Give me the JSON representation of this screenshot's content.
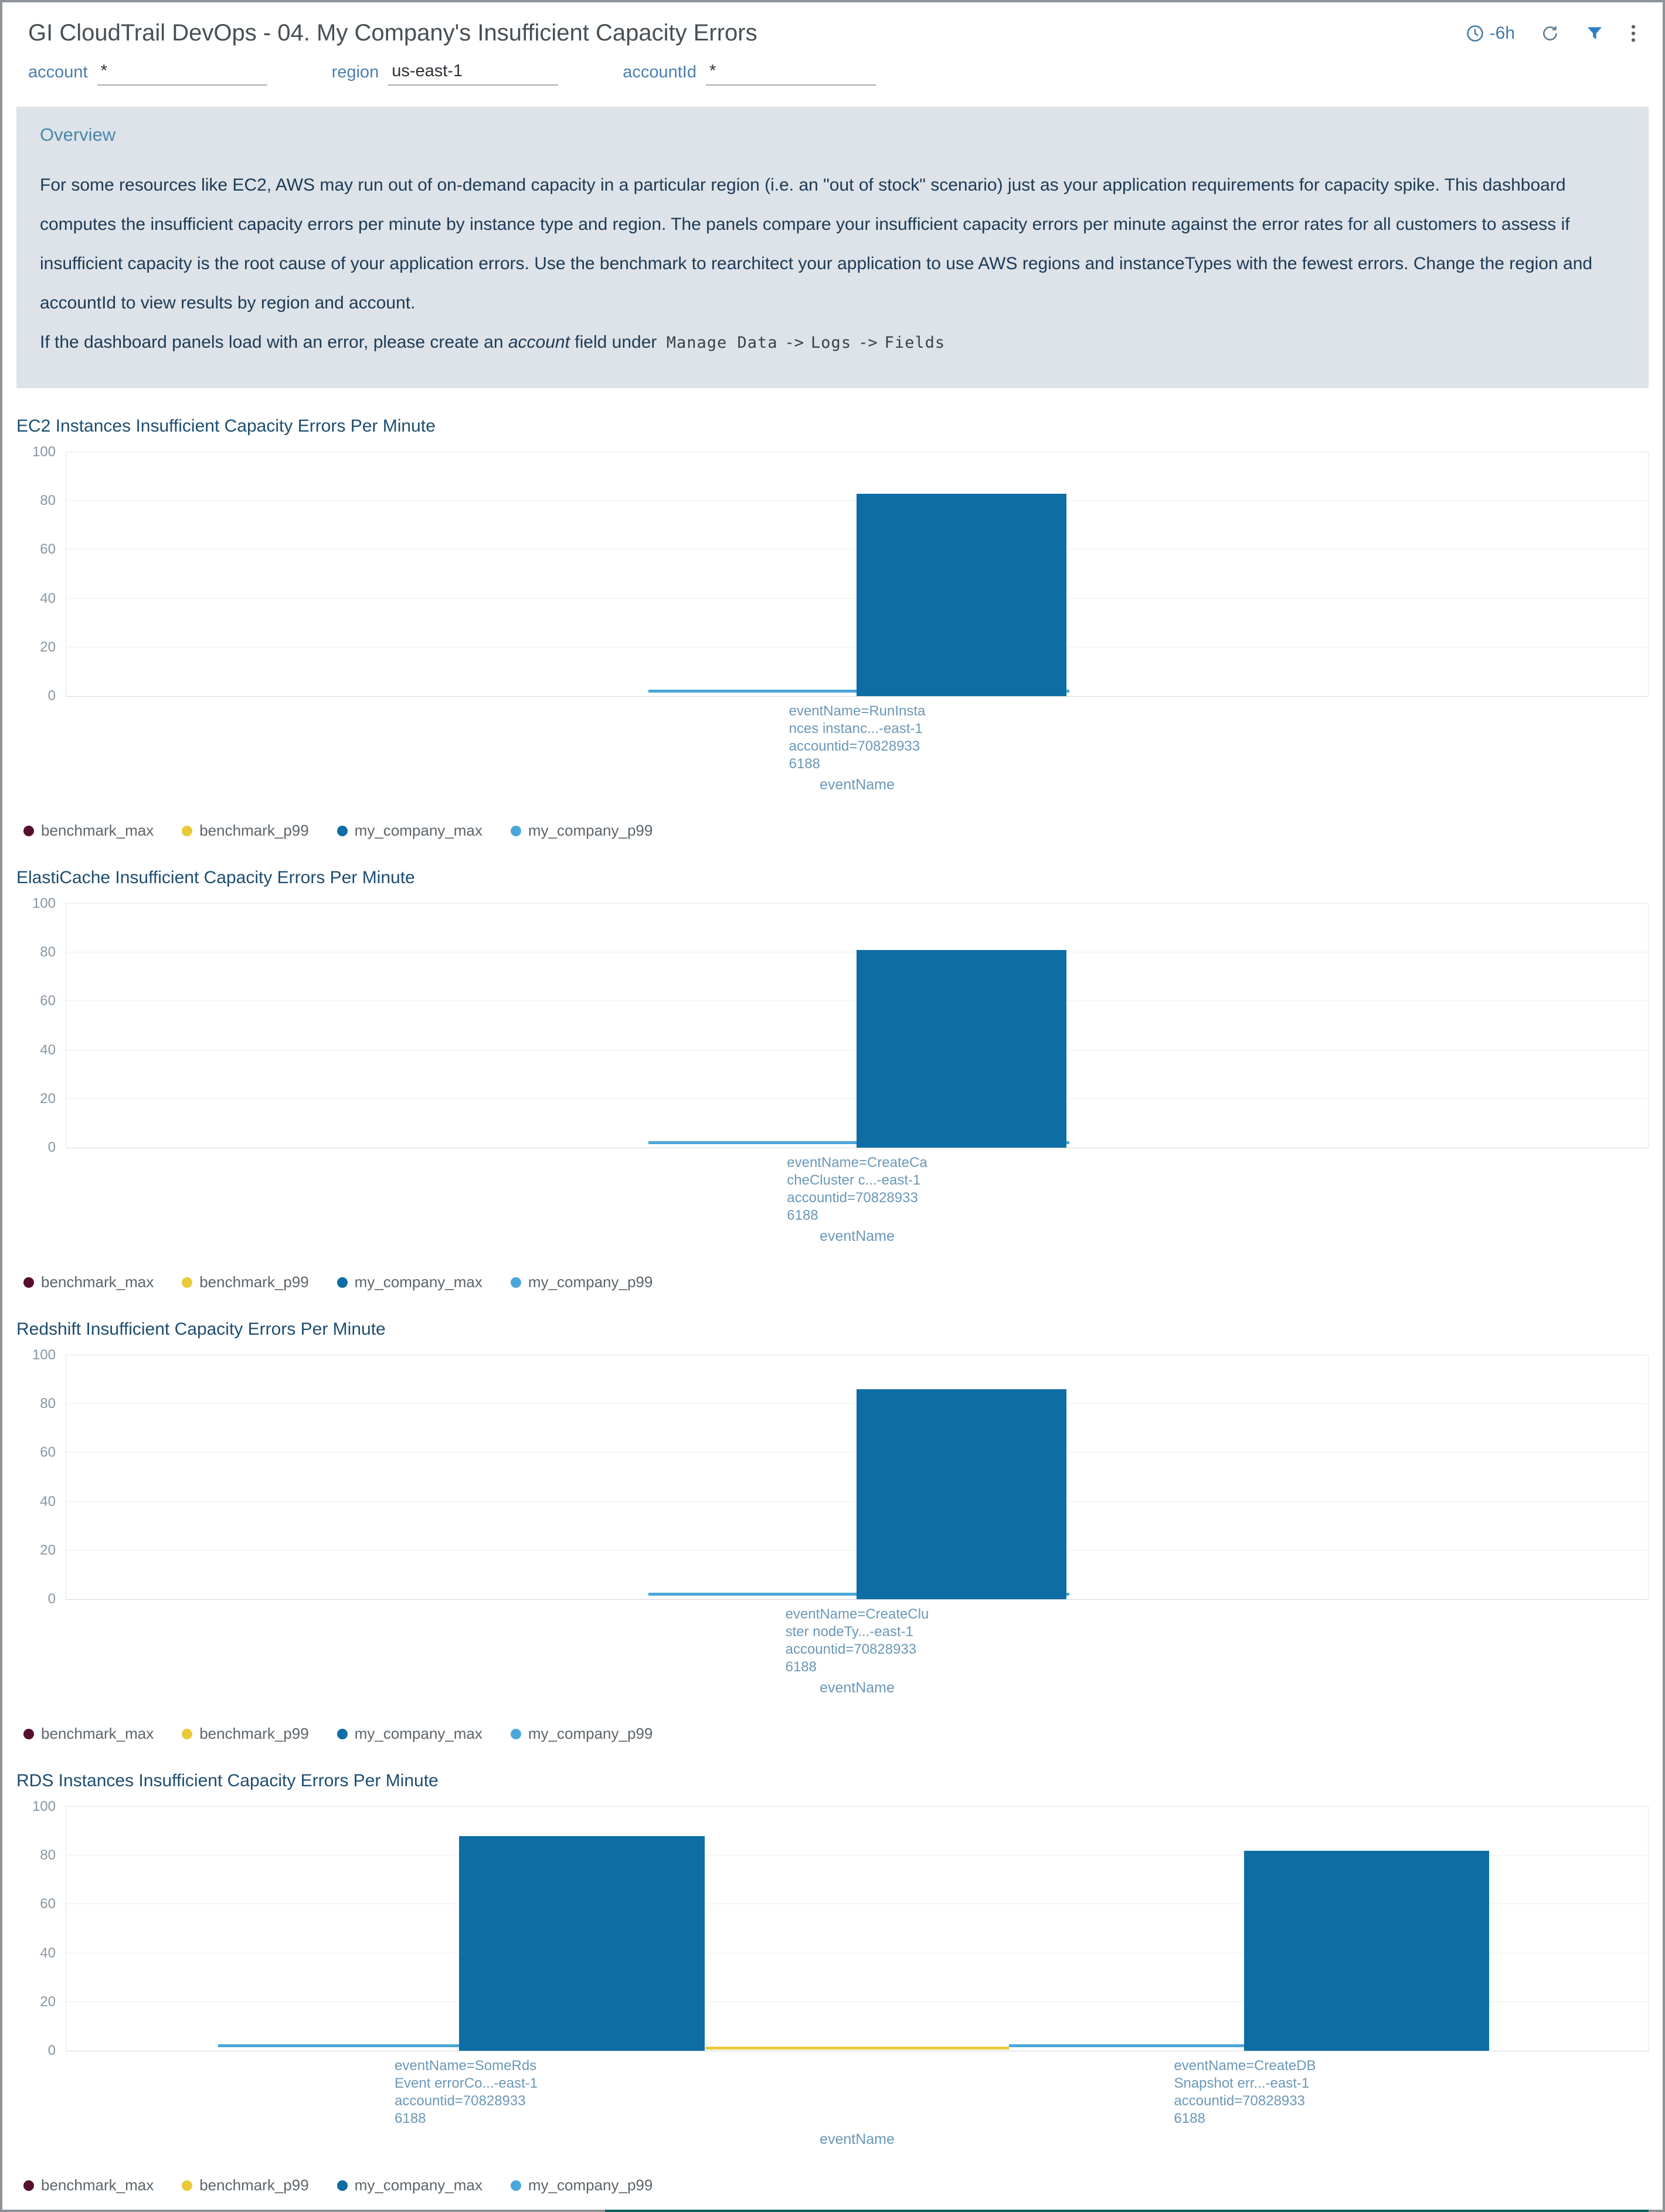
{
  "header": {
    "title": "GI CloudTrail DevOps - 04. My Company's Insufficient Capacity Errors",
    "time_range": "-6h",
    "icons": {
      "time": "clock-icon",
      "refresh": "refresh-icon",
      "filter": "filter-icon",
      "menu": "kebab-menu-icon"
    }
  },
  "filters": [
    {
      "label": "account",
      "value": "*"
    },
    {
      "label": "region",
      "value": "us-east-1"
    },
    {
      "label": "accountId",
      "value": "*"
    }
  ],
  "overview": {
    "title": "Overview",
    "paragraph": "For some resources like EC2, AWS may run out of on-demand capacity in a particular region (i.e. an \"out of stock\" scenario) just as your application requirements for capacity spike. This dashboard computes the insufficient capacity errors per minute by instance type and region. The panels compare your insufficient capacity errors per minute against the error rates for all customers to assess if insufficient capacity is the root cause of your application errors. Use the benchmark to rearchitect your application to use AWS regions and instanceTypes with the fewest errors. Change the region and accountId to view results by region and account.",
    "note": {
      "prefix": "If the dashboard panels load with an error, please create an ",
      "italic": "account",
      "mid": " field under ",
      "code1": "Manage Data",
      "arrow1": "->",
      "code2": "Logs",
      "arrow2": "->",
      "code3": "Fields"
    }
  },
  "colors": {
    "accent_blue": "#2e7fc2",
    "bar_blue": "#0d6da4",
    "partial_panel_teal": "#0f5e66"
  },
  "legend": [
    {
      "name": "benchmark_max",
      "color": "#570f2f"
    },
    {
      "name": "benchmark_p99",
      "color": "#e8ca39"
    },
    {
      "name": "my_company_max",
      "color": "#0d6da4"
    },
    {
      "name": "my_company_p99",
      "color": "#4ba7d9"
    }
  ],
  "chart_data": [
    {
      "type": "bar",
      "title": "EC2 Instances Insufficient Capacity Errors Per Minute",
      "xlabel": "eventName",
      "ylim": [
        0,
        100
      ],
      "yticks": [
        0,
        20,
        40,
        60,
        80,
        100
      ],
      "grid": true,
      "legend_position": "bottom",
      "bar_width_pct": 13.3,
      "bars": [
        {
          "series": "my_company_max",
          "value": 83,
          "bar_center_pct": 56.6,
          "band_center_pct": 50,
          "label_lines": [
            "eventName=RunInsta",
            "nces instanc...-east-1",
            "accountid=70828933",
            "6188"
          ]
        }
      ],
      "lines": [
        {
          "series": "my_company_p99",
          "value": 2,
          "from_pct": 36.8,
          "to_pct": 63.4
        }
      ]
    },
    {
      "type": "bar",
      "title": "ElastiCache Insufficient Capacity Errors Per Minute",
      "xlabel": "eventName",
      "ylim": [
        0,
        100
      ],
      "yticks": [
        0,
        20,
        40,
        60,
        80,
        100
      ],
      "grid": true,
      "legend_position": "bottom",
      "bar_width_pct": 13.3,
      "bars": [
        {
          "series": "my_company_max",
          "value": 81,
          "bar_center_pct": 56.6,
          "band_center_pct": 50,
          "label_lines": [
            "eventName=CreateCa",
            "cheCluster c...-east-1",
            "accountid=70828933",
            "6188"
          ]
        }
      ],
      "lines": [
        {
          "series": "my_company_p99",
          "value": 2,
          "from_pct": 36.8,
          "to_pct": 63.4
        }
      ]
    },
    {
      "type": "bar",
      "title": "Redshift Insufficient Capacity Errors Per Minute",
      "xlabel": "eventName",
      "ylim": [
        0,
        100
      ],
      "yticks": [
        0,
        20,
        40,
        60,
        80,
        100
      ],
      "grid": true,
      "legend_position": "bottom",
      "bar_width_pct": 13.3,
      "bars": [
        {
          "series": "my_company_max",
          "value": 86,
          "bar_center_pct": 56.6,
          "band_center_pct": 50,
          "label_lines": [
            "eventName=CreateClu",
            "ster nodeTy...-east-1",
            "accountid=70828933",
            "6188"
          ]
        }
      ],
      "lines": [
        {
          "series": "my_company_p99",
          "value": 2,
          "from_pct": 36.8,
          "to_pct": 63.4
        }
      ]
    },
    {
      "type": "bar",
      "title": "RDS Instances Insufficient Capacity Errors Per Minute",
      "xlabel": "eventName",
      "ylim": [
        0,
        100
      ],
      "yticks": [
        0,
        20,
        40,
        60,
        80,
        100
      ],
      "grid": true,
      "legend_position": "bottom",
      "bar_width_pct": 15.5,
      "bars": [
        {
          "series": "my_company_max",
          "value": 88,
          "bar_center_pct": 32.6,
          "band_center_pct": 25.3,
          "label_lines": [
            "eventName=SomeRds",
            "Event errorCo...-east-1",
            "accountid=70828933",
            "6188"
          ]
        },
        {
          "series": "my_company_max",
          "value": 82,
          "bar_center_pct": 82.2,
          "band_center_pct": 74.5,
          "label_lines": [
            "eventName=CreateDB",
            "Snapshot err...-east-1",
            "accountid=70828933",
            "6188"
          ]
        }
      ],
      "lines": [
        {
          "series": "my_company_p99",
          "value": 2,
          "from_pct": 9.6,
          "to_pct": 26.0
        },
        {
          "series": "benchmark_p99",
          "value": 1,
          "from_pct": 40.4,
          "to_pct": 59.6
        },
        {
          "series": "my_company_p99",
          "value": 2,
          "from_pct": 59.6,
          "to_pct": 75.5
        }
      ]
    }
  ]
}
